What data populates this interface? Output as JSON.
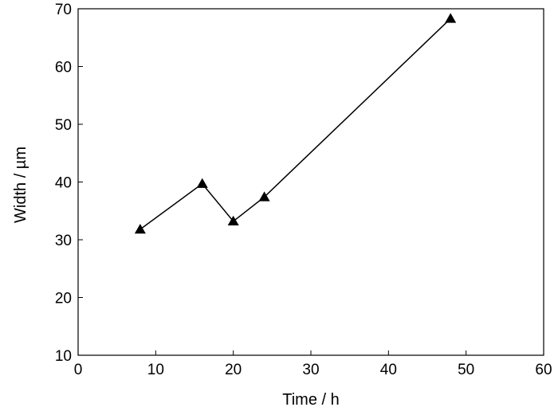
{
  "chart_data": {
    "type": "line",
    "xlabel": "Time / h",
    "ylabel": "Width / µm",
    "xlim": [
      0,
      60
    ],
    "ylim": [
      10,
      70
    ],
    "xticks": [
      0,
      10,
      20,
      30,
      40,
      50,
      60
    ],
    "yticks": [
      10,
      20,
      30,
      40,
      50,
      60,
      70
    ],
    "grid": false,
    "series": [
      {
        "marker": "triangle",
        "color": "#000000",
        "x": [
          8,
          16,
          20,
          24,
          48
        ],
        "y": [
          31.8,
          39.7,
          33.2,
          37.4,
          68.3
        ]
      }
    ]
  }
}
